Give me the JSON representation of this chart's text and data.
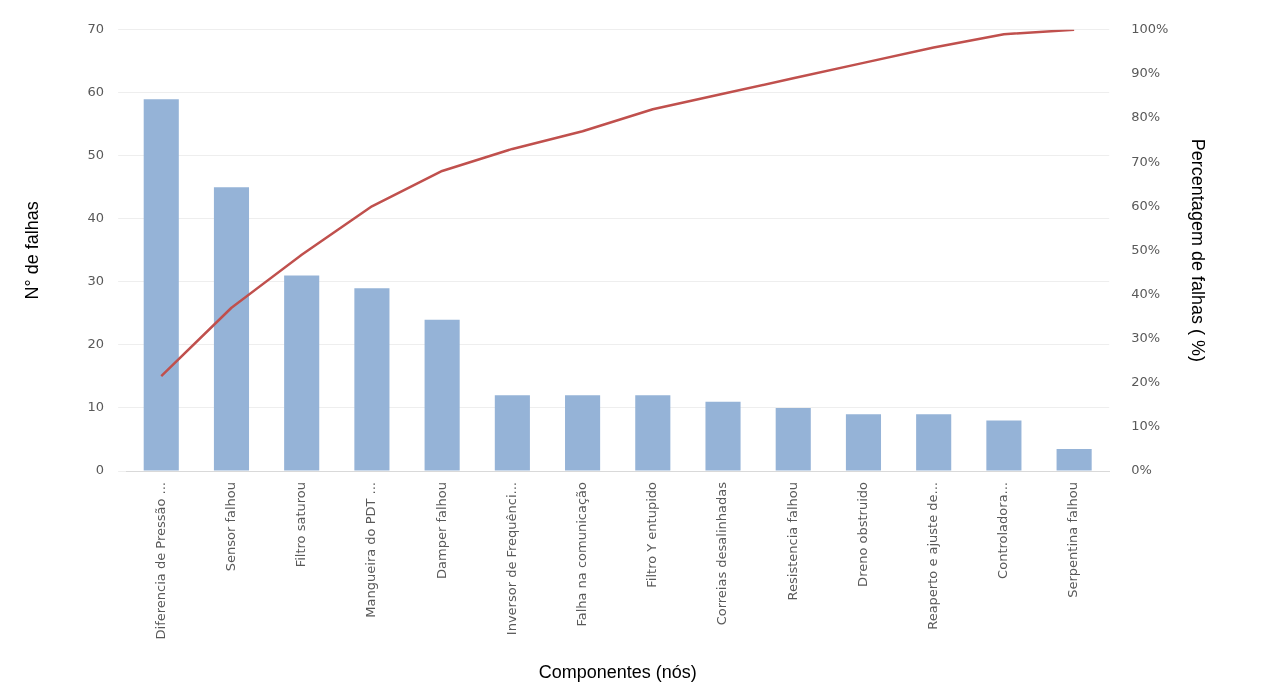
{
  "chart_data": {
    "type": "bar",
    "xlabel": "Componentes (nós)",
    "ylabel": "N° de falhas",
    "y2label": "Percentagem de falhas ( %)",
    "categories": [
      "Diferencia de Pressão ...",
      "Sensor falhou",
      "Filtro saturou",
      "Mangueira do PDT ...",
      "Damper falhou",
      "Inversor de Frequênci...",
      "Falha na comunicação",
      "Filtro Y entupido",
      "Correias desalinhadas",
      "Resistencia falhou",
      "Dreno obstruido",
      "Reaperto e ajuste de...",
      "Controladora...",
      "Serpentina falhou"
    ],
    "series": [
      {
        "color": "#95b3d7",
        "values": [
          59,
          45,
          31,
          29,
          24,
          12,
          12,
          12,
          11,
          10,
          9,
          9,
          8,
          3.5
        ]
      },
      {
        "type": "line",
        "axis": "y2",
        "color": "#c0504d",
        "values": [
          21.5,
          37,
          49,
          60,
          68,
          73,
          77,
          82,
          85.5,
          89,
          92.5,
          96,
          99,
          100
        ]
      }
    ],
    "ylim": [
      0,
      70
    ],
    "yticks": [
      0,
      10,
      20,
      30,
      40,
      50,
      60,
      70
    ],
    "y2lim": [
      0,
      100
    ],
    "y2ticks": [
      {
        "value": 0,
        "label": "0%"
      },
      {
        "value": 10,
        "label": "10%"
      },
      {
        "value": 20,
        "label": "20%"
      },
      {
        "value": 30,
        "label": "30%"
      },
      {
        "value": 40,
        "label": "40%"
      },
      {
        "value": 50,
        "label": "50%"
      },
      {
        "value": 60,
        "label": "60%"
      },
      {
        "value": 70,
        "label": "70%"
      },
      {
        "value": 80,
        "label": "80%"
      },
      {
        "value": 90,
        "label": "90%"
      },
      {
        "value": 100,
        "label": "100%"
      }
    ],
    "grid": "y",
    "legend": false,
    "marker": "none",
    "line_style": "solid"
  }
}
